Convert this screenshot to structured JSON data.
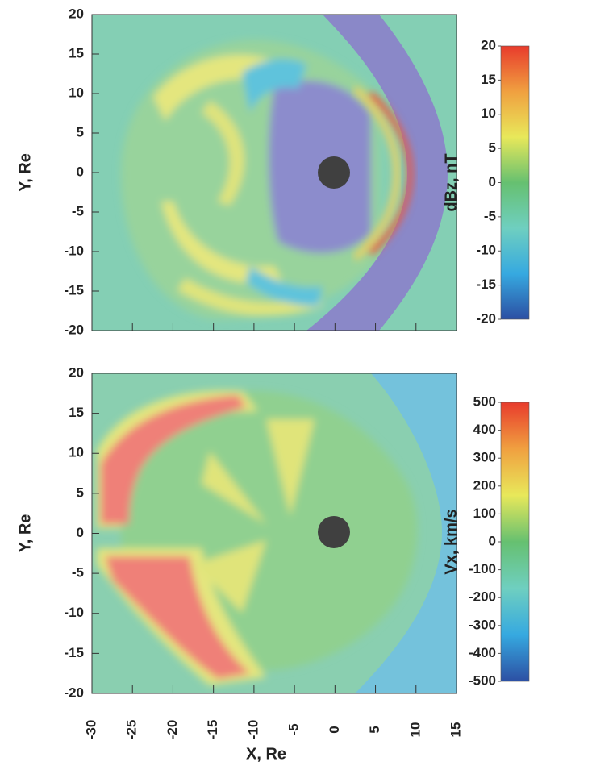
{
  "chart_data": [
    {
      "type": "heatmap",
      "ylabel": "Y, Re",
      "xlim": [
        -30,
        15
      ],
      "xticks": [
        -30,
        -25,
        -20,
        -15,
        -10,
        -5,
        0,
        5,
        10,
        15
      ],
      "ylim": [
        -20,
        20
      ],
      "yticks": [
        20,
        15,
        10,
        5,
        0,
        -5,
        -10,
        -15,
        -20
      ],
      "colorbar": {
        "label": "dBz, nT",
        "lim": [
          -20,
          20
        ],
        "ticks": [
          20,
          15,
          10,
          5,
          0,
          -5,
          -10,
          -15,
          -20
        ],
        "colors": [
          "#2c4fa3",
          "#36a9e0",
          "#6fcfc0",
          "#66c070",
          "#e8e85a",
          "#f0a040",
          "#e83b2c"
        ]
      }
    },
    {
      "type": "heatmap",
      "ylabel": "Y, Re",
      "xlabel": "X, Re",
      "xlim": [
        -30,
        15
      ],
      "xticks": [
        -30,
        -25,
        -20,
        -15,
        -10,
        -5,
        0,
        5,
        10,
        15
      ],
      "ylim": [
        -20,
        20
      ],
      "yticks": [
        20,
        15,
        10,
        5,
        0,
        -5,
        -10,
        -15,
        -20
      ],
      "colorbar": {
        "label": "Vx, km/s",
        "lim": [
          -500,
          500
        ],
        "ticks": [
          500,
          400,
          300,
          200,
          100,
          0,
          -100,
          -200,
          -300,
          -400,
          -500
        ],
        "colors": [
          "#2c4fa3",
          "#36a9e0",
          "#6fcfc0",
          "#66c070",
          "#e8e85a",
          "#f0a040",
          "#e83b2c"
        ]
      }
    }
  ]
}
